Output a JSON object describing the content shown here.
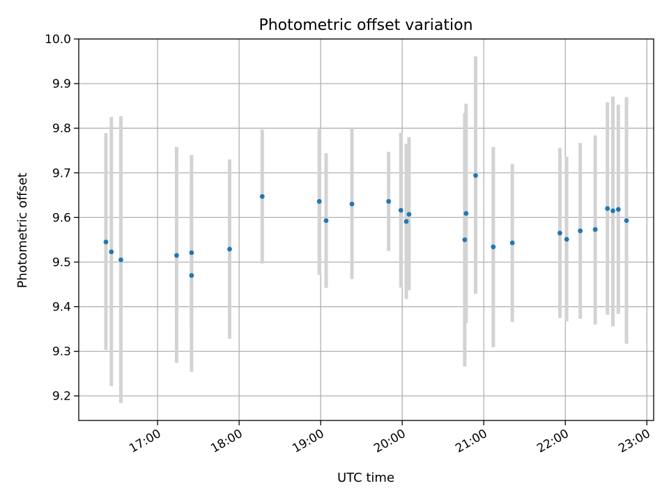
{
  "chart_data": {
    "type": "scatter",
    "title": "Photometric offset variation",
    "xlabel": "UTC time",
    "ylabel": "Photometric offset",
    "x_axis_type": "time",
    "xlim": [
      "16:02",
      "23:05"
    ],
    "ylim": [
      9.145,
      10.0
    ],
    "x_ticks": [
      "17:00",
      "18:00",
      "19:00",
      "20:00",
      "21:00",
      "22:00",
      "23:00"
    ],
    "y_ticks": [
      "9.2",
      "9.3",
      "9.4",
      "9.5",
      "9.6",
      "9.7",
      "9.8",
      "9.9",
      "10.0"
    ],
    "grid": true,
    "legend": "none",
    "colors": {
      "point": "#1f77b4",
      "errorbar": "#d3d3d3",
      "grid": "#b0b0b0"
    },
    "series": [
      {
        "points": [
          {
            "x": "16:22",
            "y": 9.545,
            "ylo": 9.303,
            "yhi": 9.789
          },
          {
            "x": "16:26",
            "y": 9.523,
            "ylo": 9.222,
            "yhi": 9.825
          },
          {
            "x": "16:33",
            "y": 9.505,
            "ylo": 9.184,
            "yhi": 9.827
          },
          {
            "x": "17:14",
            "y": 9.515,
            "ylo": 9.274,
            "yhi": 9.758
          },
          {
            "x": "17:25",
            "y": 9.521,
            "ylo": 9.352,
            "yhi": 9.689
          },
          {
            "x": "17:25",
            "y": 9.47,
            "ylo": 9.254,
            "yhi": 9.74
          },
          {
            "x": "17:53",
            "y": 9.529,
            "ylo": 9.328,
            "yhi": 9.73
          },
          {
            "x": "18:17",
            "y": 9.647,
            "ylo": 9.497,
            "yhi": 9.797
          },
          {
            "x": "18:59",
            "y": 9.636,
            "ylo": 9.471,
            "yhi": 9.8
          },
          {
            "x": "19:04",
            "y": 9.593,
            "ylo": 9.442,
            "yhi": 9.744
          },
          {
            "x": "19:23",
            "y": 9.63,
            "ylo": 9.462,
            "yhi": 9.8
          },
          {
            "x": "19:50",
            "y": 9.636,
            "ylo": 9.525,
            "yhi": 9.747
          },
          {
            "x": "19:59",
            "y": 9.616,
            "ylo": 9.443,
            "yhi": 9.79
          },
          {
            "x": "20:03",
            "y": 9.591,
            "ylo": 9.417,
            "yhi": 9.765
          },
          {
            "x": "20:05",
            "y": 9.607,
            "ylo": 9.437,
            "yhi": 9.78
          },
          {
            "x": "20:46",
            "y": 9.55,
            "ylo": 9.266,
            "yhi": 9.834
          },
          {
            "x": "20:47",
            "y": 9.609,
            "ylo": 9.363,
            "yhi": 9.855
          },
          {
            "x": "20:54",
            "y": 9.694,
            "ylo": 9.429,
            "yhi": 9.961
          },
          {
            "x": "21:07",
            "y": 9.534,
            "ylo": 9.309,
            "yhi": 9.758
          },
          {
            "x": "21:21",
            "y": 9.543,
            "ylo": 9.366,
            "yhi": 9.72
          },
          {
            "x": "21:56",
            "y": 9.565,
            "ylo": 9.375,
            "yhi": 9.756
          },
          {
            "x": "22:01",
            "y": 9.551,
            "ylo": 9.367,
            "yhi": 9.736
          },
          {
            "x": "22:11",
            "y": 9.57,
            "ylo": 9.373,
            "yhi": 9.767
          },
          {
            "x": "22:22",
            "y": 9.573,
            "ylo": 9.36,
            "yhi": 9.784
          },
          {
            "x": "22:31",
            "y": 9.62,
            "ylo": 9.382,
            "yhi": 9.858
          },
          {
            "x": "22:35",
            "y": 9.615,
            "ylo": 9.356,
            "yhi": 9.871
          },
          {
            "x": "22:39",
            "y": 9.618,
            "ylo": 9.384,
            "yhi": 9.853
          },
          {
            "x": "22:45",
            "y": 9.593,
            "ylo": 9.317,
            "yhi": 9.87
          }
        ]
      }
    ]
  }
}
